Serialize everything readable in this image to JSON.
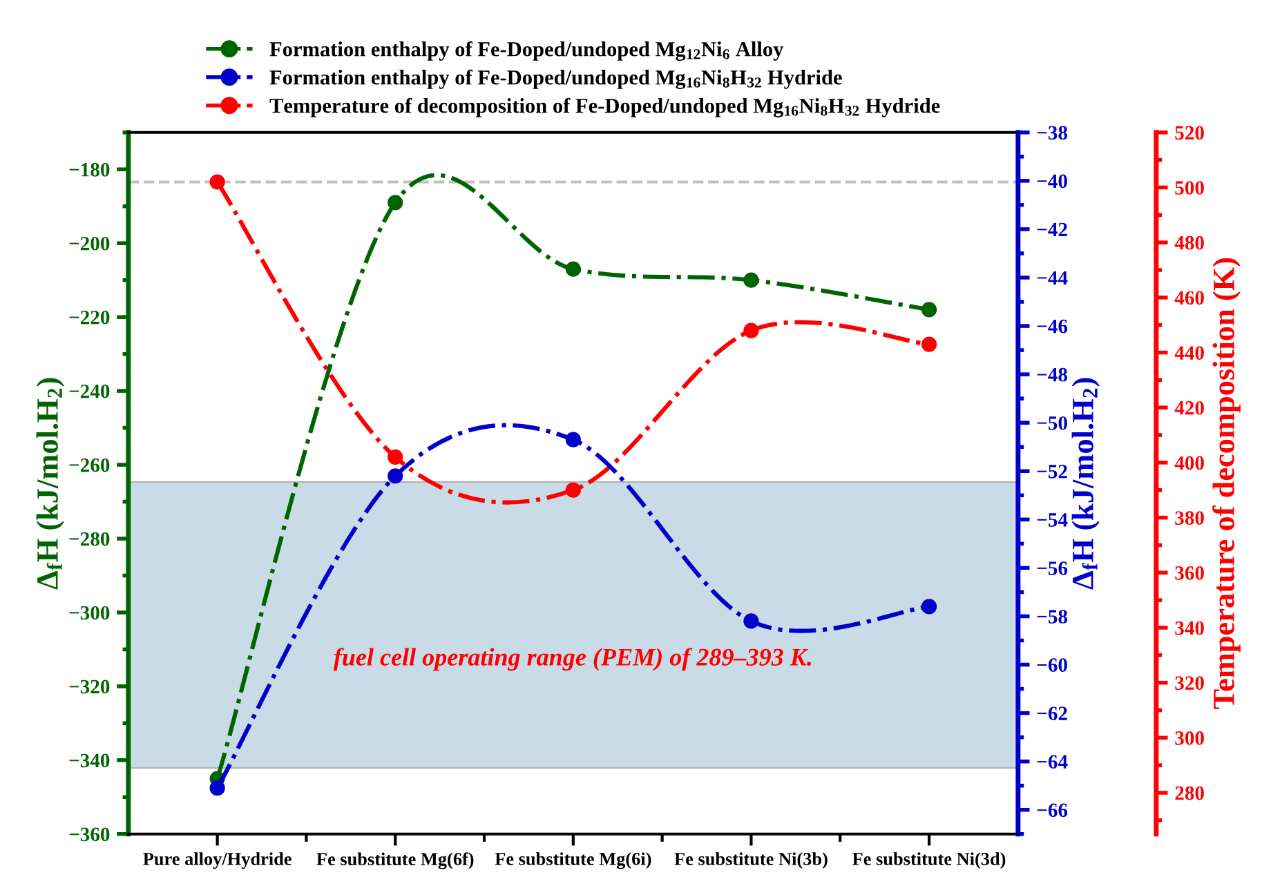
{
  "chart_data": {
    "type": "line",
    "categories": [
      "Pure alloy/Hydride",
      "Fe substitute Mg(6f)",
      "Fe substitute Mg(6i)",
      "Fe substitute Ni(3b)",
      "Fe substitute Ni(3d)"
    ],
    "series": [
      {
        "name": "Formation enthalpy of Fe-Doped/undoped Mg$_{12}$Ni$_{6}$ Alloy",
        "color": "#006400",
        "values": [
          -345,
          -189,
          -207,
          -210,
          -218
        ]
      },
      {
        "name": "Formation enthalpy of Fe-Doped/undoped Mg$_{16}$Ni$_{8}$H$_{32}$ Hydride",
        "color": "#0000cc",
        "axis": "y2",
        "values": [
          -65.1,
          -52.2,
          -50.7,
          -58.2,
          -57.6
        ]
      },
      {
        "name": "Temperature of decomposition of Fe-Doped/undoped Mg$_{16}$Ni$_{8}$H$_{32}$ Hydride",
        "color": "#ff0000",
        "axis": "y3",
        "values": [
          502,
          402,
          390,
          448,
          443
        ]
      }
    ],
    "ylabel": "Δ$_{f}$H (kJ/mol.H$_{2}$)",
    "y2label": "Δ$_{f}$H (kJ/mol.H$_{2}$)",
    "y3label": "Temperature of decomposition (K)",
    "ylim": [
      -360,
      -170
    ],
    "yticks": [
      -360,
      -340,
      -320,
      -300,
      -280,
      -260,
      -240,
      -220,
      -200,
      -180
    ],
    "y2lim": [
      -67,
      -38
    ],
    "y2ticks": [
      -66,
      -64,
      -62,
      -60,
      -58,
      -56,
      -54,
      -52,
      -50,
      -48,
      -46,
      -44,
      -42,
      -40,
      -38
    ],
    "y3lim": [
      265,
      520
    ],
    "y3ticks": [
      280,
      300,
      320,
      340,
      360,
      380,
      400,
      420,
      440,
      460,
      480,
      500,
      520
    ],
    "ref_lines": [
      {
        "axis": "y3",
        "value": 502,
        "color": "#c0c0c0",
        "line_style": "dashed"
      }
    ],
    "bands": [
      {
        "axis": "y3",
        "from": 289,
        "to": 393,
        "color": "#c4d8e4",
        "label": "fuel cell operating range (PEM) of 289–393 K."
      }
    ],
    "marker": "circle",
    "line_style": "dashdot",
    "grid": false,
    "legend": "top"
  }
}
